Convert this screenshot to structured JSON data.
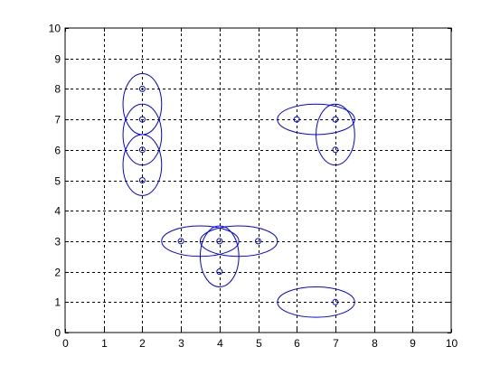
{
  "chart_data": {
    "type": "scatter",
    "title": "",
    "xlabel": "",
    "ylabel": "",
    "xlim": [
      0,
      10
    ],
    "ylim": [
      0,
      10
    ],
    "grid": true,
    "grid_style": "dashed",
    "x_ticks": [
      "0",
      "1",
      "2",
      "3",
      "4",
      "5",
      "6",
      "7",
      "8",
      "9",
      "10"
    ],
    "y_ticks": [
      "0",
      "1",
      "2",
      "3",
      "4",
      "5",
      "6",
      "7",
      "8",
      "9",
      "10"
    ],
    "color": "#0000ff",
    "points": [
      {
        "x": 2,
        "y": 8
      },
      {
        "x": 2,
        "y": 7
      },
      {
        "x": 2,
        "y": 6
      },
      {
        "x": 2,
        "y": 5
      },
      {
        "x": 6,
        "y": 7
      },
      {
        "x": 7,
        "y": 7
      },
      {
        "x": 7,
        "y": 6
      },
      {
        "x": 3,
        "y": 3
      },
      {
        "x": 4,
        "y": 3
      },
      {
        "x": 5,
        "y": 3
      },
      {
        "x": 4,
        "y": 2
      },
      {
        "x": 7,
        "y": 1
      }
    ],
    "ellipses": [
      {
        "cx": 2,
        "cy": 7.5,
        "rx": 0.5,
        "ry": 1
      },
      {
        "cx": 2,
        "cy": 6.5,
        "rx": 0.5,
        "ry": 1
      },
      {
        "cx": 2,
        "cy": 5.5,
        "rx": 0.5,
        "ry": 1
      },
      {
        "cx": 6.5,
        "cy": 7,
        "rx": 1,
        "ry": 0.5
      },
      {
        "cx": 7,
        "cy": 6.5,
        "rx": 0.5,
        "ry": 1
      },
      {
        "cx": 3.5,
        "cy": 3,
        "rx": 1,
        "ry": 0.5
      },
      {
        "cx": 4.5,
        "cy": 3,
        "rx": 1,
        "ry": 0.5
      },
      {
        "cx": 4,
        "cy": 2.5,
        "rx": 0.5,
        "ry": 1
      },
      {
        "cx": 6.5,
        "cy": 1,
        "rx": 1,
        "ry": 0.5
      }
    ]
  }
}
